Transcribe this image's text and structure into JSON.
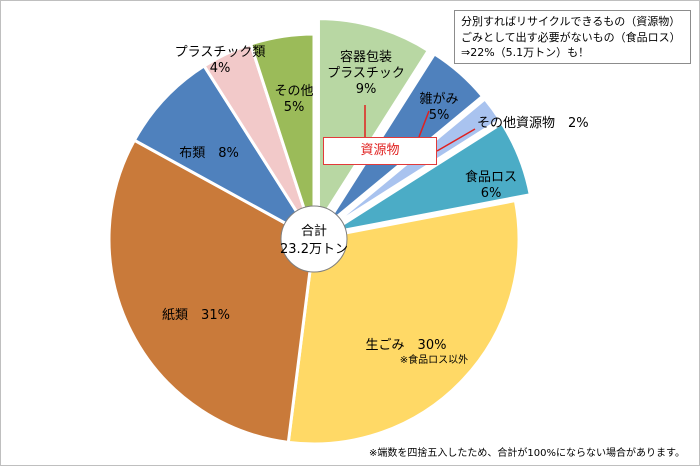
{
  "chart_data": {
    "type": "pie",
    "center_label": {
      "line1": "合計",
      "line2": "23.2万トン"
    },
    "slices": [
      {
        "name": "容器包装\nプラスチック",
        "label_lines": [
          "容器包装",
          "プラスチック"
        ],
        "value_label": "9%",
        "value": 9,
        "color": "#b8d7a3",
        "exploded": true,
        "group": "資源物"
      },
      {
        "name": "雑がみ",
        "label_lines": [
          "雑がみ"
        ],
        "value_label": "5%",
        "value": 5,
        "color": "#4f81bd",
        "exploded": true,
        "group": "資源物"
      },
      {
        "name": "その他資源物",
        "label_lines": [
          "その他資源物"
        ],
        "value_label": "2%",
        "value": 2,
        "color": "#a9c3ef",
        "exploded": true,
        "group": "資源物"
      },
      {
        "name": "食品ロス",
        "label_lines": [
          "食品ロス"
        ],
        "value_label": "6%",
        "value": 6,
        "color": "#4bacc6",
        "exploded": true
      },
      {
        "name": "生ごみ",
        "label_lines": [
          "生ごみ"
        ],
        "value_label": "30%",
        "value": 30,
        "color": "#ffd966",
        "exploded": false,
        "note": "※食品ロス以外"
      },
      {
        "name": "紙類",
        "label_lines": [
          "紙類"
        ],
        "value_label": "31%",
        "value": 31,
        "color": "#c97a3a",
        "exploded": false
      },
      {
        "name": "布類",
        "label_lines": [
          "布類"
        ],
        "value_label": "8%",
        "value": 8,
        "color": "#4f81bd",
        "exploded": false
      },
      {
        "name": "プラスチック類",
        "label_lines": [
          "プラスチック類"
        ],
        "value_label": "4%",
        "value": 4,
        "color": "#f2c9c9",
        "exploded": false
      },
      {
        "name": "その他",
        "label_lines": [
          "その他"
        ],
        "value_label": "5%",
        "value": 5,
        "color": "#9bbb59",
        "exploded": false
      }
    ],
    "legend": "none"
  },
  "callouts": {
    "resource_tag": "資源物",
    "note_lines": [
      "分別すればリサイクルできるもの（資源物）",
      "ごみとして出す必要がないもの（食品ロス）",
      "⇒22%（5.1万トン）も！"
    ],
    "footnote": "※端数を四捨五入したため、合計が100%にならない場合があります。"
  },
  "colors": {
    "callout_red": "#e0201f"
  }
}
